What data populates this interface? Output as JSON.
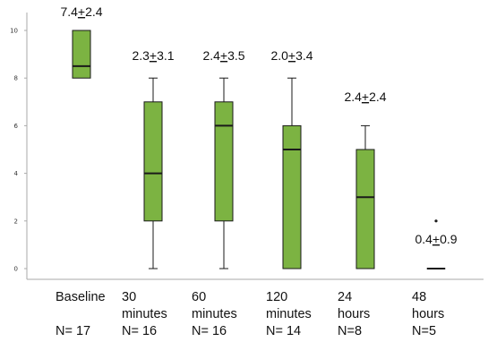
{
  "chart_data": {
    "type": "box",
    "ylim": [
      0,
      10
    ],
    "yticks": [
      0,
      2,
      4,
      6,
      8,
      10
    ],
    "grid": false,
    "colors": {
      "box_fill": "#7cb342",
      "box_stroke": "#1a1a1a",
      "axis": "#aaaaaa"
    },
    "categories": [
      {
        "line1": "Baseline",
        "line2": "",
        "n": "N= 17",
        "annotation": "7.4+2.4",
        "min": 8,
        "q1": 8,
        "median": 8.5,
        "q3": 10,
        "max": 10,
        "outliers": []
      },
      {
        "line1": "30",
        "line2": "minutes",
        "n": "N= 16",
        "annotation": "2.3+3.1",
        "min": 0,
        "q1": 2,
        "median": 4,
        "q3": 7,
        "max": 8,
        "outliers": []
      },
      {
        "line1": "60",
        "line2": "minutes",
        "n": "N= 16",
        "annotation": "2.4+3.5",
        "min": 0,
        "q1": 2,
        "median": 6,
        "q3": 7,
        "max": 8,
        "outliers": []
      },
      {
        "line1": "120",
        "line2": "minutes",
        "n": "N= 14",
        "annotation": "2.0+3.4",
        "min": 0,
        "q1": 0,
        "median": 5,
        "q3": 6,
        "max": 8,
        "outliers": []
      },
      {
        "line1": "24",
        "line2": "hours",
        "n": "N=8",
        "annotation": "2.4+2.4",
        "min": 0,
        "q1": 0,
        "median": 3,
        "q3": 5,
        "max": 6,
        "outliers": []
      },
      {
        "line1": "48",
        "line2": "hours",
        "n": "N=5",
        "annotation": "0.4+0.9",
        "min": 0,
        "q1": 0,
        "median": 0,
        "q3": 0,
        "max": 0,
        "outliers": [
          2
        ]
      }
    ]
  }
}
